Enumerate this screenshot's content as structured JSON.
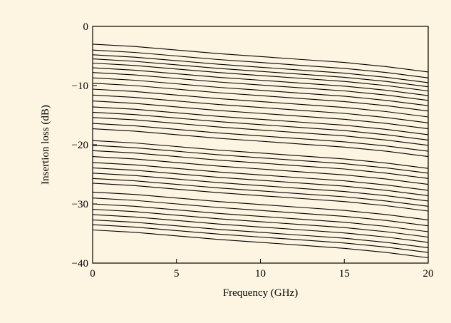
{
  "chart_data": {
    "type": "line",
    "title": "",
    "xlabel": "Frequency (GHz)",
    "ylabel": "Insertion loss (dB)",
    "xlim": [
      0,
      20
    ],
    "ylim": [
      -40,
      0
    ],
    "xticks": [
      0,
      5,
      10,
      15,
      20
    ],
    "yticks": [
      0,
      -10,
      -20,
      -30,
      -40
    ],
    "xtick_labels": [
      "0",
      "5",
      "10",
      "15",
      "20"
    ],
    "ytick_labels": [
      "0",
      "−10",
      "−20",
      "−30",
      "−40"
    ],
    "grid": false,
    "legend": "none",
    "x": [
      0,
      2.5,
      5,
      7.5,
      10,
      12.5,
      15,
      17.5,
      20
    ],
    "series": [
      {
        "values": [
          -3.0,
          -3.4,
          -4.0,
          -4.6,
          -5.1,
          -5.6,
          -6.1,
          -6.8,
          -7.7
        ]
      },
      {
        "values": [
          -4.0,
          -4.4,
          -5.0,
          -5.6,
          -6.1,
          -6.6,
          -7.1,
          -7.8,
          -8.7
        ]
      },
      {
        "values": [
          -4.8,
          -5.2,
          -5.8,
          -6.4,
          -6.9,
          -7.4,
          -7.9,
          -8.6,
          -9.5
        ]
      },
      {
        "values": [
          -5.5,
          -5.9,
          -6.5,
          -7.1,
          -7.6,
          -8.1,
          -8.6,
          -9.3,
          -10.2
        ]
      },
      {
        "values": [
          -6.2,
          -6.6,
          -7.2,
          -7.8,
          -8.3,
          -8.8,
          -9.3,
          -10.0,
          -10.9
        ]
      },
      {
        "values": [
          -7.0,
          -7.4,
          -8.0,
          -8.6,
          -9.1,
          -9.6,
          -10.1,
          -10.8,
          -11.7
        ]
      },
      {
        "values": [
          -7.8,
          -8.2,
          -8.8,
          -9.4,
          -9.9,
          -10.4,
          -10.9,
          -11.6,
          -12.5
        ]
      },
      {
        "values": [
          -8.7,
          -9.1,
          -9.7,
          -10.3,
          -10.8,
          -11.3,
          -11.8,
          -12.5,
          -13.4
        ]
      },
      {
        "values": [
          -9.6,
          -10.0,
          -10.6,
          -11.2,
          -11.7,
          -12.2,
          -12.7,
          -13.4,
          -14.3
        ]
      },
      {
        "values": [
          -10.6,
          -11.0,
          -11.6,
          -12.2,
          -12.7,
          -13.2,
          -13.7,
          -14.4,
          -15.3
        ]
      },
      {
        "values": [
          -11.6,
          -12.0,
          -12.6,
          -13.2,
          -13.7,
          -14.2,
          -14.7,
          -15.4,
          -16.3
        ]
      },
      {
        "values": [
          -12.6,
          -13.0,
          -13.6,
          -14.2,
          -14.7,
          -15.2,
          -15.7,
          -16.4,
          -17.3
        ]
      },
      {
        "values": [
          -13.6,
          -14.0,
          -14.6,
          -15.2,
          -15.7,
          -16.2,
          -16.7,
          -17.4,
          -18.3
        ]
      },
      {
        "values": [
          -14.5,
          -14.9,
          -15.5,
          -16.1,
          -16.6,
          -17.1,
          -17.6,
          -18.3,
          -19.2
        ]
      },
      {
        "values": [
          -15.4,
          -15.8,
          -16.4,
          -17.0,
          -17.5,
          -18.0,
          -18.5,
          -19.2,
          -20.1
        ]
      },
      {
        "values": [
          -16.4,
          -16.8,
          -17.4,
          -18.0,
          -18.5,
          -19.0,
          -19.5,
          -20.2,
          -21.1
        ]
      },
      {
        "values": [
          -17.3,
          -17.7,
          -18.3,
          -18.9,
          -19.4,
          -19.9,
          -20.4,
          -21.1,
          -22.0
        ]
      },
      {
        "values": [
          -19.3,
          -19.7,
          -20.3,
          -20.9,
          -21.4,
          -21.9,
          -22.4,
          -23.1,
          -24.0
        ]
      },
      {
        "values": [
          -20.1,
          -20.5,
          -21.1,
          -21.7,
          -22.2,
          -22.7,
          -23.2,
          -23.9,
          -24.8
        ]
      },
      {
        "values": [
          -21.0,
          -21.4,
          -22.0,
          -22.6,
          -23.1,
          -23.6,
          -24.1,
          -24.8,
          -25.7
        ]
      },
      {
        "values": [
          -22.0,
          -22.4,
          -23.0,
          -23.6,
          -24.1,
          -24.6,
          -25.1,
          -25.8,
          -26.7
        ]
      },
      {
        "values": [
          -23.0,
          -23.4,
          -24.0,
          -24.6,
          -25.1,
          -25.6,
          -26.1,
          -26.8,
          -27.7
        ]
      },
      {
        "values": [
          -23.9,
          -24.3,
          -24.9,
          -25.5,
          -26.0,
          -26.5,
          -27.0,
          -27.7,
          -28.6
        ]
      },
      {
        "values": [
          -24.8,
          -25.2,
          -25.8,
          -26.4,
          -26.9,
          -27.4,
          -27.9,
          -28.6,
          -29.5
        ]
      },
      {
        "values": [
          -25.7,
          -26.1,
          -26.7,
          -27.3,
          -27.8,
          -28.3,
          -28.8,
          -29.5,
          -30.4
        ]
      },
      {
        "values": [
          -26.5,
          -26.9,
          -27.5,
          -28.1,
          -28.6,
          -29.1,
          -29.6,
          -30.3,
          -31.2
        ]
      },
      {
        "values": [
          -28.0,
          -28.4,
          -29.0,
          -29.6,
          -30.1,
          -30.6,
          -31.1,
          -31.8,
          -32.7
        ]
      },
      {
        "values": [
          -29.0,
          -29.4,
          -30.0,
          -30.6,
          -31.1,
          -31.6,
          -32.1,
          -32.8,
          -33.7
        ]
      },
      {
        "values": [
          -30.0,
          -30.4,
          -31.0,
          -31.6,
          -32.1,
          -32.6,
          -33.1,
          -33.8,
          -34.7
        ]
      },
      {
        "values": [
          -30.9,
          -31.3,
          -31.9,
          -32.5,
          -33.0,
          -33.5,
          -34.0,
          -34.7,
          -35.6
        ]
      },
      {
        "values": [
          -31.8,
          -32.2,
          -32.8,
          -33.4,
          -33.9,
          -34.4,
          -34.9,
          -35.6,
          -36.5
        ]
      },
      {
        "values": [
          -32.7,
          -33.1,
          -33.7,
          -34.3,
          -34.8,
          -35.3,
          -35.8,
          -36.5,
          -37.4
        ]
      },
      {
        "values": [
          -33.5,
          -33.9,
          -34.5,
          -35.1,
          -35.6,
          -36.1,
          -36.6,
          -37.3,
          -38.2
        ]
      },
      {
        "values": [
          -34.4,
          -34.8,
          -35.4,
          -36.0,
          -36.5,
          -37.0,
          -37.5,
          -38.2,
          -39.1
        ]
      }
    ]
  }
}
